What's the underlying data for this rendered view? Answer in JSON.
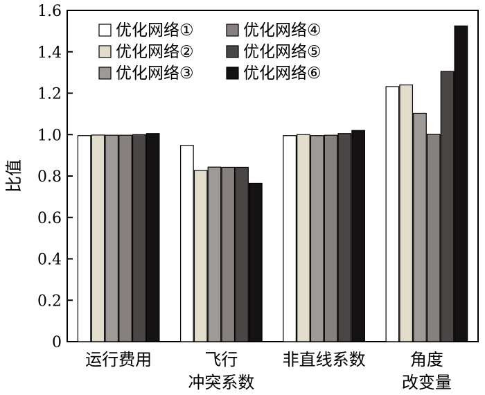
{
  "chart_data": {
    "type": "bar",
    "title": "",
    "xlabel": "",
    "ylabel": "比值",
    "ylim": [
      0,
      1.6
    ],
    "yticks": [
      "0",
      "0.2",
      "0.4",
      "0.6",
      "0.8",
      "1.0",
      "1.2",
      "1.4",
      "1.6"
    ],
    "categories": [
      [
        "运行费用"
      ],
      [
        "飞行",
        "冲突系数"
      ],
      [
        "非直线系数"
      ],
      [
        "角度",
        "改变量"
      ]
    ],
    "series": [
      {
        "name": "优化网络①",
        "color": "#ffffff",
        "values": [
          0.995,
          0.948,
          0.995,
          1.232
        ]
      },
      {
        "name": "优化网络②",
        "color": "#e2dccc",
        "values": [
          0.998,
          0.827,
          1.0,
          1.24
        ]
      },
      {
        "name": "优化网络③",
        "color": "#9e9a98",
        "values": [
          0.997,
          0.843,
          0.995,
          1.103
        ]
      },
      {
        "name": "优化网络④",
        "color": "#86807e",
        "values": [
          0.997,
          0.842,
          0.997,
          1.002
        ]
      },
      {
        "name": "优化网络⑤",
        "color": "#4a4646",
        "values": [
          1.0,
          0.842,
          1.005,
          1.305
        ]
      },
      {
        "name": "优化网络⑥",
        "color": "#141212",
        "values": [
          1.005,
          0.765,
          1.02,
          1.525
        ]
      }
    ],
    "legend_position": "top-left",
    "grid": false
  }
}
